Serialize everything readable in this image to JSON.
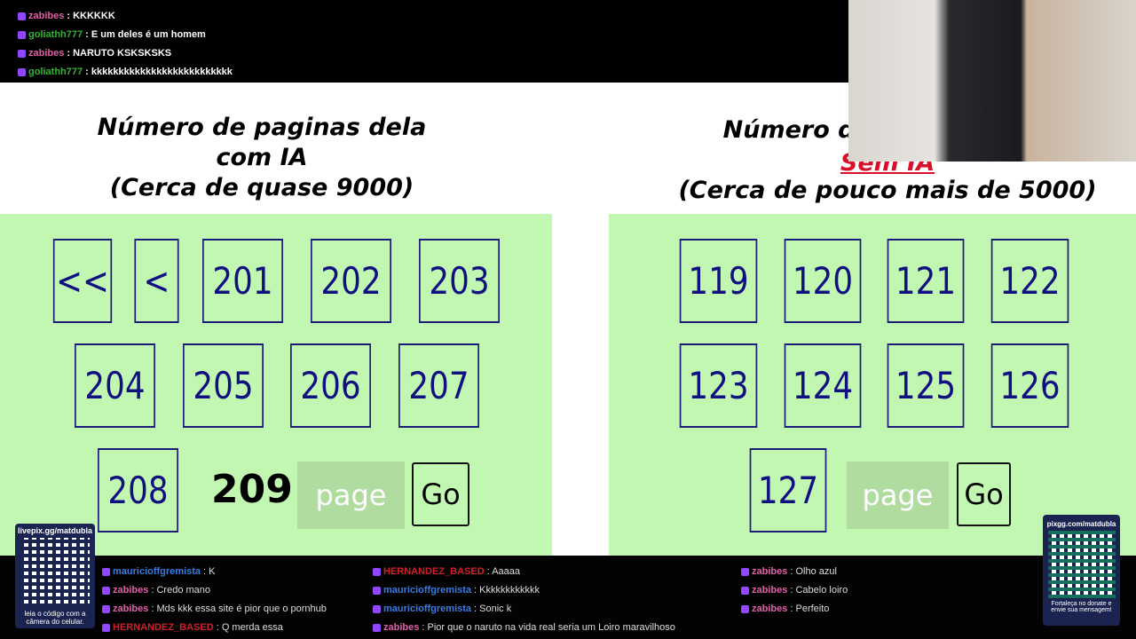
{
  "chat": [
    {
      "user": "zabibes",
      "color": "#e05fa8",
      "text": "KKKKKK"
    },
    {
      "user": "goliathh777",
      "color": "#2fb52f",
      "text": "E um deles é um homem"
    },
    {
      "user": "zabibes",
      "color": "#e05fa8",
      "text": "NARUTO KSKSKSKS"
    },
    {
      "user": "goliathh777",
      "color": "#2fb52f",
      "text": "kkkkkkkkkkkkkkkkkkkkkkkkkk"
    },
    {
      "user": "mauricioffgremista",
      "color": "#3a7be0",
      "text": "K"
    },
    {
      "user": "zabibes",
      "color": "#e05fa8",
      "text": "Credo mano"
    },
    {
      "user": "zabibes",
      "color": "#e05fa8",
      "text": "Mds kkk essa site é pior que o pornhub"
    },
    {
      "user": "HERNANDEZ_BASED",
      "color": "#d0202a",
      "text": "Q merda essa"
    },
    {
      "user": "HERNANDEZ_BASED",
      "color": "#d0202a",
      "text": "Aaaaa"
    },
    {
      "user": "mauricioffgremista",
      "color": "#3a7be0",
      "text": "Kkkkkkkkkkkk"
    },
    {
      "user": "mauricioffgremista",
      "color": "#3a7be0",
      "text": "Sonic k"
    },
    {
      "user": "zabibes",
      "color": "#e05fa8",
      "text": "Pior que o naruto na vida real seria um Loiro maravilhoso"
    },
    {
      "user": "zabibes",
      "color": "#e05fa8",
      "text": "Olho azul"
    },
    {
      "user": "zabibes",
      "color": "#e05fa8",
      "text": "Cabelo loiro"
    },
    {
      "user": "zabibes",
      "color": "#e05fa8",
      "text": "Perfeito"
    }
  ],
  "left": {
    "title1": "Número de paginas dela",
    "title2": "com IA",
    "title3": "(Cerca de quase 9000)",
    "first": "<<",
    "prev": "<",
    "pages": [
      "201",
      "202",
      "203",
      "204",
      "205",
      "206",
      "207",
      "208"
    ],
    "current": "209",
    "placeholder": "page",
    "go": "Go"
  },
  "right": {
    "title1": "Número de paginas dela",
    "title2": "Sem IA",
    "title3": "(Cerca de pouco mais de 5000)",
    "pages": [
      "119",
      "120",
      "121",
      "122",
      "123",
      "124",
      "125",
      "126",
      "127"
    ],
    "placeholder": "page",
    "go": "Go"
  },
  "qr_left": {
    "url": "livepix.gg/matdubla",
    "caption": "leia o código com a câmera do celular."
  },
  "qr_right": {
    "url": "pixgg.com/matdubla",
    "caption": "Fortaleça no donate e envie sua mensagem!"
  }
}
